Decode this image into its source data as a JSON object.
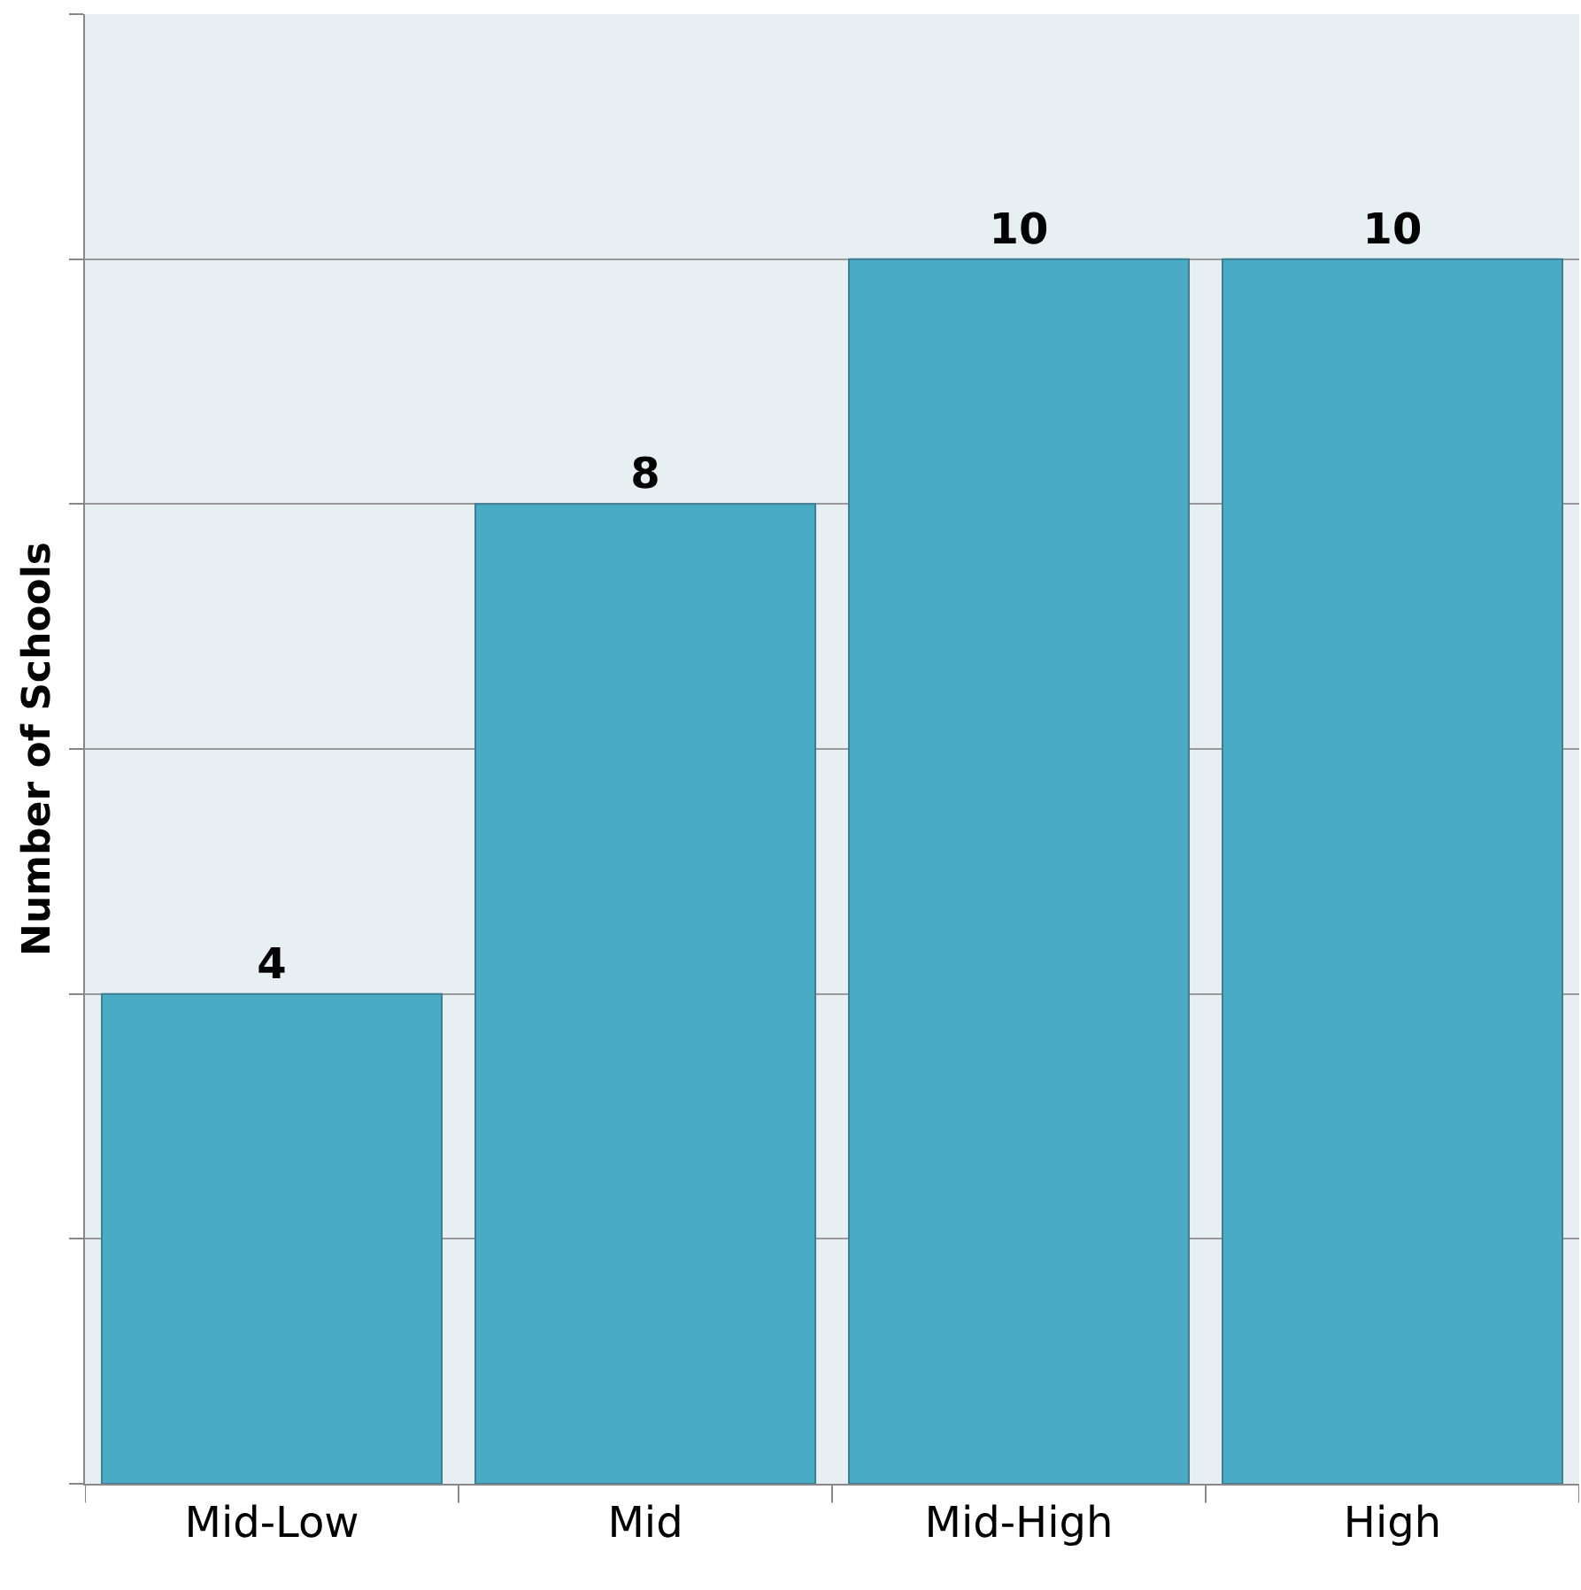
{
  "chart_data": {
    "type": "bar",
    "ylabel": "Number of Schools",
    "categories": [
      "Mid-Low",
      "Mid",
      "Mid-High",
      "High"
    ],
    "values": [
      4,
      8,
      10,
      10
    ],
    "color": "#4aabc5",
    "data_labels": true,
    "ylim": [
      0,
      12
    ],
    "yticks": [
      {
        "value": 0,
        "label": null
      },
      {
        "value": 2,
        "label": null
      },
      {
        "value": 4,
        "label": null
      },
      {
        "value": 6,
        "label": null
      },
      {
        "value": 8,
        "label": null
      },
      {
        "value": 10,
        "label": null
      },
      {
        "value": 12,
        "label": null
      }
    ],
    "tick_labels": "x",
    "grid": "y"
  }
}
